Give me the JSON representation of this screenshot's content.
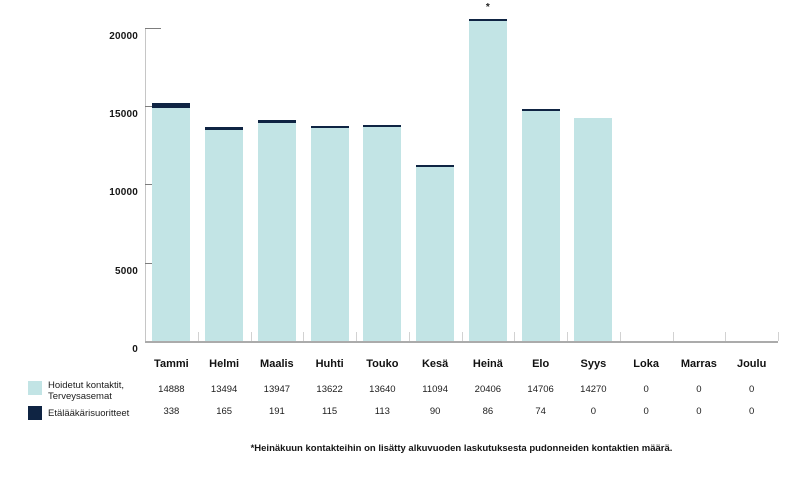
{
  "chart_data": {
    "type": "bar",
    "stacked": true,
    "title": "",
    "categories": [
      "Tammi",
      "Helmi",
      "Maalis",
      "Huhti",
      "Touko",
      "Kesä",
      "Heinä",
      "Elo",
      "Syys",
      "Loka",
      "Marras",
      "Joulu"
    ],
    "series": [
      {
        "name": "Hoidetut kontaktit, Terveysasemat",
        "color": "#c2e4e5",
        "values": [
          14888,
          13494,
          13947,
          13622,
          13640,
          11094,
          20406,
          14706,
          14270,
          0,
          0,
          0
        ]
      },
      {
        "name": "Etälääkärisuoritteet",
        "color": "#0f2443",
        "values": [
          338,
          165,
          191,
          115,
          113,
          90,
          86,
          74,
          0,
          0,
          0,
          0
        ]
      }
    ],
    "y_ticks": [
      0,
      5000,
      10000,
      15000,
      20000
    ],
    "y_tick_labels": [
      "0",
      "5000",
      "10000",
      "15000",
      "20000"
    ],
    "ylim": [
      0,
      20500
    ],
    "grid": false,
    "legend_position": "bottom-left",
    "annotation": {
      "category": "Heinä",
      "symbol": "*"
    },
    "value_table_shown": true
  },
  "legend": {
    "items": [
      {
        "swatch_color": "#c2e4e5",
        "label_lines": [
          "Hoidetut kontaktit,",
          "Terveysasemat"
        ]
      },
      {
        "swatch_color": "#0f2443",
        "label_lines": [
          "Etälääkärisuoritteet"
        ]
      }
    ]
  },
  "footnote": "*Heinäkuun kontakteihin on lisätty alkuvuoden laskutuksesta pudonneiden kontaktien määrä.",
  "colors": {
    "bar_light": "#c2e4e5",
    "bar_dark": "#0f2443",
    "axis": "#c6c6c6",
    "baseline": "#ababab",
    "y_tick": "#7d7d7d",
    "x_tick": "#d2d2d2",
    "text": "#141414"
  }
}
